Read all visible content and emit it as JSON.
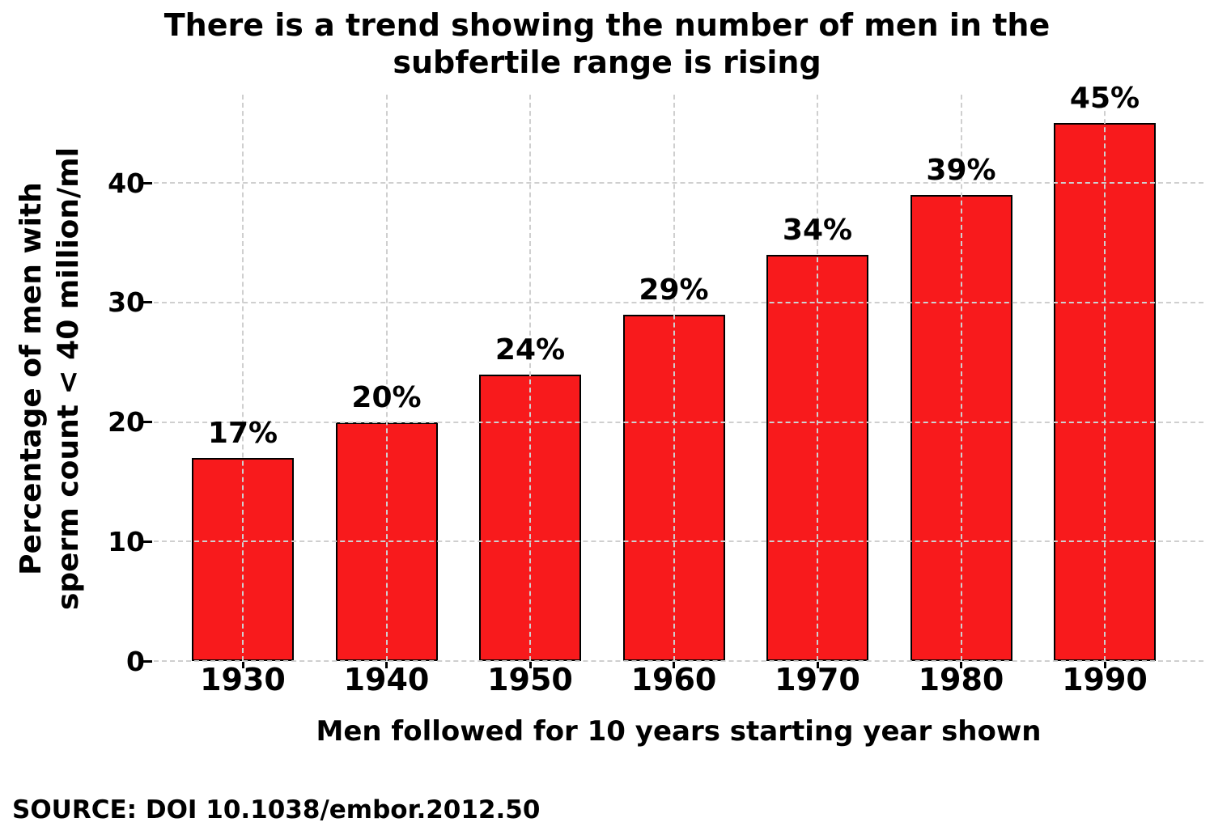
{
  "source": "SOURCE: DOI 10.1038/embor.2012.50",
  "chart_data": {
    "type": "bar",
    "title": "There is a trend showing the number of men in the\nsubfertile range is rising",
    "xlabel": "Men followed for 10 years starting year shown",
    "ylabel": "Percentage of men with\nsperm count < 40 million/ml",
    "categories": [
      "1930",
      "1940",
      "1950",
      "1960",
      "1970",
      "1980",
      "1990"
    ],
    "values": [
      17,
      20,
      24,
      29,
      34,
      39,
      45
    ],
    "data_labels": [
      "17%",
      "20%",
      "24%",
      "29%",
      "34%",
      "39%",
      "45%"
    ],
    "yticks": [
      0,
      10,
      20,
      30,
      40
    ],
    "ylim": [
      0,
      47.4
    ],
    "grid": true,
    "gridline_style": "dashed",
    "legend_position": "none",
    "colors": {
      "bar_fill": "#f81a1c",
      "bar_edge": "#000000",
      "grid": "#cfcfcf",
      "text": "#000000",
      "background": "#ffffff"
    }
  }
}
